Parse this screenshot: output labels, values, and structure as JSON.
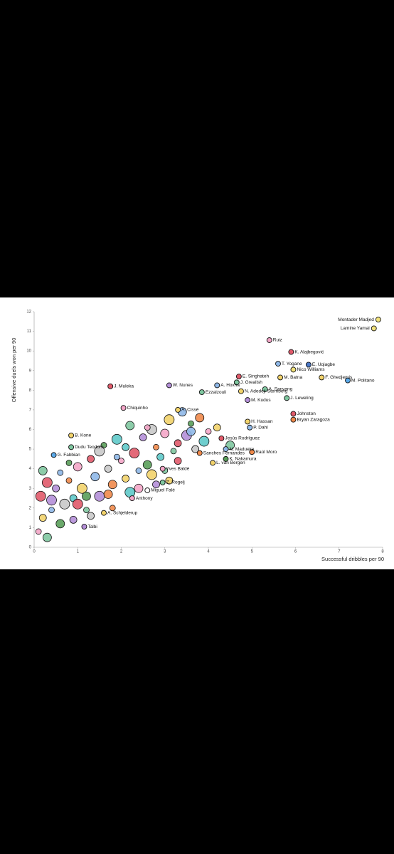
{
  "chart_data": {
    "type": "scatter",
    "x_label": "Successful dribbles per 90",
    "y_label": "Offensive duels won per 90",
    "xlim": [
      0,
      8
    ],
    "xticks": [
      0,
      1,
      2,
      3,
      4,
      5,
      6,
      7,
      8
    ],
    "ylim": [
      0,
      12
    ],
    "yticks": [
      0,
      1,
      2,
      3,
      4,
      5,
      6,
      7,
      8,
      9,
      10,
      11,
      12
    ],
    "palette": [
      "#f4a6c8",
      "#f2d36b",
      "#7fc7a0",
      "#e05a6a",
      "#8fb8e8",
      "#b48fd8",
      "#5a9e5a",
      "#c9c9c9",
      "#f08a4b",
      "#5fc9c9"
    ],
    "points": [
      {
        "name": "Montader Madjed",
        "x": 7.9,
        "y": 11.6,
        "color": "#f2e27a"
      },
      {
        "name": "Lamine Yamal",
        "x": 7.8,
        "y": 11.15,
        "color": "#f2e27a"
      },
      {
        "name": "Ruiz",
        "x": 5.4,
        "y": 10.55,
        "color": "#f4a6c8"
      },
      {
        "name": "K. Alajbegović",
        "x": 5.9,
        "y": 9.95,
        "color": "#e05a6a"
      },
      {
        "name": "T. Yogane",
        "x": 5.6,
        "y": 9.35,
        "color": "#8fb8e8"
      },
      {
        "name": "E. Uqiagbe",
        "x": 6.3,
        "y": 9.3,
        "color": "#4a78c8"
      },
      {
        "name": "Nico Williams",
        "x": 5.95,
        "y": 9.05,
        "color": "#f2e27a"
      },
      {
        "name": "M. Batna",
        "x": 5.65,
        "y": 8.65,
        "color": "#f2d36b"
      },
      {
        "name": "F. Ghedjemis",
        "x": 6.6,
        "y": 8.65,
        "color": "#f2d36b"
      },
      {
        "name": "M. Politano",
        "x": 7.2,
        "y": 8.5,
        "color": "#5aa8e8"
      },
      {
        "name": "E. Singhateh",
        "x": 4.7,
        "y": 8.7,
        "color": "#e05a6a"
      },
      {
        "name": "J. Grealish",
        "x": 4.65,
        "y": 8.4,
        "color": "#7fc7a0"
      },
      {
        "name": "W. Nunes",
        "x": 3.1,
        "y": 8.25,
        "color": "#b48fd8"
      },
      {
        "name": "J. Muleka",
        "x": 1.75,
        "y": 8.2,
        "color": "#e05a6a"
      },
      {
        "name": "A. Hoxha",
        "x": 4.2,
        "y": 8.25,
        "color": "#8fb8e8"
      },
      {
        "name": "Ezzalzouli",
        "x": 3.85,
        "y": 7.9,
        "color": "#7fc7a0"
      },
      {
        "name": "N. Adedeji-Sternberg",
        "x": 4.75,
        "y": 7.95,
        "color": "#f2d36b"
      },
      {
        "name": "A. Sanyang",
        "x": 5.3,
        "y": 8.05,
        "color": "#7fc7a0"
      },
      {
        "name": "M. Kudus",
        "x": 4.9,
        "y": 7.5,
        "color": "#b48fd8"
      },
      {
        "name": "J. Leweling",
        "x": 5.8,
        "y": 7.6,
        "color": "#7fc7a0"
      },
      {
        "name": "Chiquinho",
        "x": 2.05,
        "y": 7.1,
        "color": "#f4a6c8"
      },
      {
        "name": "A. Cissé",
        "x": 3.3,
        "y": 7.0,
        "color": "#f2d36b"
      },
      {
        "name": "Johnston",
        "x": 5.95,
        "y": 6.8,
        "color": "#e05a6a"
      },
      {
        "name": "Bryan Zaragoza",
        "x": 5.95,
        "y": 6.5,
        "color": "#f08a4b"
      },
      {
        "name": "H. Hassan",
        "x": 4.9,
        "y": 6.4,
        "color": "#f2d36b"
      },
      {
        "name": "P. Dahl",
        "x": 4.95,
        "y": 6.1,
        "color": "#8fb8e8"
      },
      {
        "name": "B. Kone",
        "x": 0.85,
        "y": 5.7,
        "color": "#f2d36b"
      },
      {
        "name": "Jesús Rodríguez",
        "x": 4.3,
        "y": 5.55,
        "color": "#e05a6a"
      },
      {
        "name": "Dudu Teodora",
        "x": 0.85,
        "y": 5.1,
        "color": "#7fc7a0"
      },
      {
        "name": "N. Madueke",
        "x": 4.4,
        "y": 5.0,
        "color": "#8fb8e8"
      },
      {
        "name": "Sanches Fernandes",
        "x": 3.8,
        "y": 4.8,
        "color": "#f08a4b"
      },
      {
        "name": "Raúl Moro",
        "x": 5.0,
        "y": 4.85,
        "color": "#f08a4b"
      },
      {
        "name": "G. Fabbian",
        "x": 0.45,
        "y": 4.7,
        "color": "#5aa8e8"
      },
      {
        "name": "K. Nakamura",
        "x": 4.4,
        "y": 4.5,
        "color": "#5a9e5a"
      },
      {
        "name": "L. van Bergen",
        "x": 4.1,
        "y": 4.3,
        "color": "#f2d36b"
      },
      {
        "name": "Yves Baldé",
        "x": 2.95,
        "y": 4.0,
        "color": "#f4a6c8"
      },
      {
        "name": "Z. Rogelj",
        "x": 2.95,
        "y": 3.3,
        "color": "#7fc7a0"
      },
      {
        "name": "Miguel Falé",
        "x": 2.6,
        "y": 2.9,
        "color": "#ffffff"
      },
      {
        "name": "Anthony",
        "x": 2.25,
        "y": 2.5,
        "color": "#f4a6c8"
      },
      {
        "name": "A. Schjelderup",
        "x": 1.6,
        "y": 1.75,
        "color": "#f2d36b"
      },
      {
        "name": "Talbi",
        "x": 1.15,
        "y": 1.05,
        "color": "#b48fd8"
      }
    ],
    "cloud": {
      "x": [
        0.1,
        0.2,
        0.3,
        0.15,
        0.4,
        0.5,
        0.6,
        0.7,
        0.8,
        0.9,
        1.0,
        1.1,
        1.2,
        1.3,
        1.4,
        1.5,
        1.6,
        1.7,
        1.8,
        1.9,
        2.0,
        2.1,
        2.2,
        2.3,
        2.4,
        2.5,
        2.6,
        2.7,
        2.8,
        2.9,
        3.0,
        3.1,
        3.2,
        3.3,
        3.4,
        3.5,
        3.6,
        3.7,
        3.8,
        3.9,
        4.0,
        4.2,
        4.5,
        0.3,
        0.6,
        0.9,
        1.2,
        1.5,
        1.8,
        2.1,
        2.4,
        2.7,
        3.0,
        3.3,
        3.6,
        0.4,
        0.8,
        1.3,
        1.7,
        2.2,
        2.6,
        3.1,
        0.2,
        1.0,
        1.9,
        2.8
      ],
      "y": [
        0.8,
        1.5,
        0.5,
        2.6,
        1.9,
        3.0,
        1.2,
        2.2,
        3.4,
        2.5,
        4.1,
        3.0,
        1.9,
        4.5,
        3.6,
        2.6,
        5.2,
        4.0,
        3.2,
        5.5,
        4.4,
        3.5,
        6.2,
        4.8,
        3.9,
        5.6,
        4.2,
        6.0,
        5.1,
        4.6,
        5.8,
        6.5,
        4.9,
        5.3,
        6.9,
        5.7,
        6.3,
        5.0,
        6.6,
        5.4,
        5.9,
        6.1,
        5.2,
        3.3,
        3.8,
        1.4,
        2.6,
        4.9,
        2.0,
        5.1,
        3.0,
        3.7,
        3.9,
        4.4,
        5.9,
        2.4,
        4.3,
        1.6,
        2.7,
        2.8,
        6.1,
        3.4,
        3.9,
        2.2,
        4.6,
        3.2
      ]
    }
  }
}
